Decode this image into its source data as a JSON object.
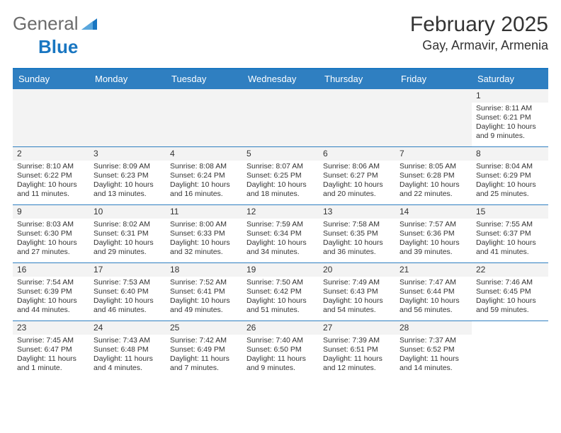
{
  "logo": {
    "general": "General",
    "blue": "Blue"
  },
  "header": {
    "month_title": "February 2025",
    "location": "Gay, Armavir, Armenia"
  },
  "colors": {
    "header_bg": "#2f7fc1",
    "alt_bg": "#f3f3f3",
    "border": "#1976c1",
    "text": "#333333"
  },
  "weekdays": [
    "Sunday",
    "Monday",
    "Tuesday",
    "Wednesday",
    "Thursday",
    "Friday",
    "Saturday"
  ],
  "weeks": [
    [
      null,
      null,
      null,
      null,
      null,
      null,
      {
        "d": "1",
        "sr": "Sunrise: 8:11 AM",
        "ss": "Sunset: 6:21 PM",
        "dl": "Daylight: 10 hours and 9 minutes."
      }
    ],
    [
      {
        "d": "2",
        "sr": "Sunrise: 8:10 AM",
        "ss": "Sunset: 6:22 PM",
        "dl": "Daylight: 10 hours and 11 minutes."
      },
      {
        "d": "3",
        "sr": "Sunrise: 8:09 AM",
        "ss": "Sunset: 6:23 PM",
        "dl": "Daylight: 10 hours and 13 minutes."
      },
      {
        "d": "4",
        "sr": "Sunrise: 8:08 AM",
        "ss": "Sunset: 6:24 PM",
        "dl": "Daylight: 10 hours and 16 minutes."
      },
      {
        "d": "5",
        "sr": "Sunrise: 8:07 AM",
        "ss": "Sunset: 6:25 PM",
        "dl": "Daylight: 10 hours and 18 minutes."
      },
      {
        "d": "6",
        "sr": "Sunrise: 8:06 AM",
        "ss": "Sunset: 6:27 PM",
        "dl": "Daylight: 10 hours and 20 minutes."
      },
      {
        "d": "7",
        "sr": "Sunrise: 8:05 AM",
        "ss": "Sunset: 6:28 PM",
        "dl": "Daylight: 10 hours and 22 minutes."
      },
      {
        "d": "8",
        "sr": "Sunrise: 8:04 AM",
        "ss": "Sunset: 6:29 PM",
        "dl": "Daylight: 10 hours and 25 minutes."
      }
    ],
    [
      {
        "d": "9",
        "sr": "Sunrise: 8:03 AM",
        "ss": "Sunset: 6:30 PM",
        "dl": "Daylight: 10 hours and 27 minutes."
      },
      {
        "d": "10",
        "sr": "Sunrise: 8:02 AM",
        "ss": "Sunset: 6:31 PM",
        "dl": "Daylight: 10 hours and 29 minutes."
      },
      {
        "d": "11",
        "sr": "Sunrise: 8:00 AM",
        "ss": "Sunset: 6:33 PM",
        "dl": "Daylight: 10 hours and 32 minutes."
      },
      {
        "d": "12",
        "sr": "Sunrise: 7:59 AM",
        "ss": "Sunset: 6:34 PM",
        "dl": "Daylight: 10 hours and 34 minutes."
      },
      {
        "d": "13",
        "sr": "Sunrise: 7:58 AM",
        "ss": "Sunset: 6:35 PM",
        "dl": "Daylight: 10 hours and 36 minutes."
      },
      {
        "d": "14",
        "sr": "Sunrise: 7:57 AM",
        "ss": "Sunset: 6:36 PM",
        "dl": "Daylight: 10 hours and 39 minutes."
      },
      {
        "d": "15",
        "sr": "Sunrise: 7:55 AM",
        "ss": "Sunset: 6:37 PM",
        "dl": "Daylight: 10 hours and 41 minutes."
      }
    ],
    [
      {
        "d": "16",
        "sr": "Sunrise: 7:54 AM",
        "ss": "Sunset: 6:39 PM",
        "dl": "Daylight: 10 hours and 44 minutes."
      },
      {
        "d": "17",
        "sr": "Sunrise: 7:53 AM",
        "ss": "Sunset: 6:40 PM",
        "dl": "Daylight: 10 hours and 46 minutes."
      },
      {
        "d": "18",
        "sr": "Sunrise: 7:52 AM",
        "ss": "Sunset: 6:41 PM",
        "dl": "Daylight: 10 hours and 49 minutes."
      },
      {
        "d": "19",
        "sr": "Sunrise: 7:50 AM",
        "ss": "Sunset: 6:42 PM",
        "dl": "Daylight: 10 hours and 51 minutes."
      },
      {
        "d": "20",
        "sr": "Sunrise: 7:49 AM",
        "ss": "Sunset: 6:43 PM",
        "dl": "Daylight: 10 hours and 54 minutes."
      },
      {
        "d": "21",
        "sr": "Sunrise: 7:47 AM",
        "ss": "Sunset: 6:44 PM",
        "dl": "Daylight: 10 hours and 56 minutes."
      },
      {
        "d": "22",
        "sr": "Sunrise: 7:46 AM",
        "ss": "Sunset: 6:45 PM",
        "dl": "Daylight: 10 hours and 59 minutes."
      }
    ],
    [
      {
        "d": "23",
        "sr": "Sunrise: 7:45 AM",
        "ss": "Sunset: 6:47 PM",
        "dl": "Daylight: 11 hours and 1 minute."
      },
      {
        "d": "24",
        "sr": "Sunrise: 7:43 AM",
        "ss": "Sunset: 6:48 PM",
        "dl": "Daylight: 11 hours and 4 minutes."
      },
      {
        "d": "25",
        "sr": "Sunrise: 7:42 AM",
        "ss": "Sunset: 6:49 PM",
        "dl": "Daylight: 11 hours and 7 minutes."
      },
      {
        "d": "26",
        "sr": "Sunrise: 7:40 AM",
        "ss": "Sunset: 6:50 PM",
        "dl": "Daylight: 11 hours and 9 minutes."
      },
      {
        "d": "27",
        "sr": "Sunrise: 7:39 AM",
        "ss": "Sunset: 6:51 PM",
        "dl": "Daylight: 11 hours and 12 minutes."
      },
      {
        "d": "28",
        "sr": "Sunrise: 7:37 AM",
        "ss": "Sunset: 6:52 PM",
        "dl": "Daylight: 11 hours and 14 minutes."
      },
      null
    ]
  ]
}
